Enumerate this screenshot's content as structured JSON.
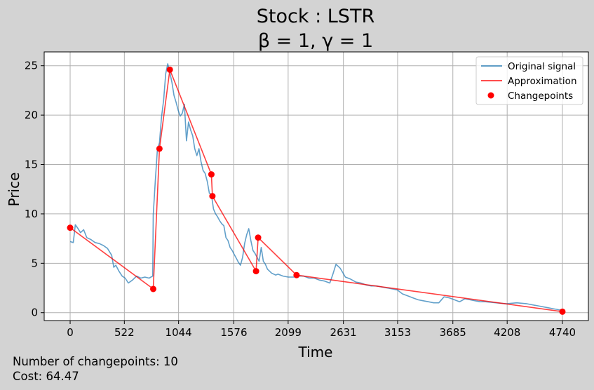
{
  "chart_data": {
    "type": "line",
    "title_line1": "Stock : LSTR",
    "title_line2": "β = 1, γ = 1",
    "xlabel": "Time",
    "ylabel": "Price",
    "xlim": [
      -250,
      4990
    ],
    "ylim": [
      -0.8,
      26.4
    ],
    "x_ticks": [
      0,
      522,
      1044,
      1576,
      2099,
      2631,
      3153,
      3685,
      4208,
      4740
    ],
    "y_ticks": [
      0,
      5,
      10,
      15,
      20,
      25
    ],
    "grid": true,
    "legend_position": "upper right",
    "legend": [
      "Original signal",
      "Approximation",
      "Changepoints"
    ],
    "colors": {
      "signal": "#1f77b4",
      "approximation": "#ff0000",
      "changepoints": "#ff0000"
    },
    "series": [
      {
        "name": "Original signal",
        "x": [
          0,
          30,
          50,
          70,
          100,
          130,
          160,
          200,
          240,
          280,
          320,
          360,
          400,
          420,
          440,
          470,
          500,
          530,
          560,
          600,
          640,
          680,
          720,
          760,
          795,
          800,
          820,
          840,
          860,
          880,
          900,
          920,
          940,
          960,
          980,
          1000,
          1020,
          1040,
          1060,
          1080,
          1100,
          1120,
          1140,
          1160,
          1180,
          1200,
          1220,
          1240,
          1260,
          1280,
          1300,
          1320,
          1340,
          1360,
          1380,
          1400,
          1420,
          1440,
          1460,
          1480,
          1500,
          1520,
          1540,
          1560,
          1580,
          1600,
          1620,
          1640,
          1660,
          1680,
          1700,
          1720,
          1740,
          1760,
          1780,
          1800,
          1820,
          1840,
          1860,
          1880,
          1900,
          1920,
          1940,
          1960,
          1980,
          2000,
          2050,
          2100,
          2150,
          2200,
          2250,
          2300,
          2350,
          2400,
          2450,
          2500,
          2530,
          2560,
          2600,
          2650,
          2700,
          2750,
          2800,
          2850,
          2900,
          2950,
          3000,
          3050,
          3100,
          3150,
          3200,
          3250,
          3300,
          3350,
          3400,
          3450,
          3500,
          3550,
          3600,
          3650,
          3700,
          3750,
          3800,
          3850,
          3900,
          3950,
          4000,
          4100,
          4200,
          4300,
          4400,
          4500,
          4600,
          4650,
          4700,
          4740
        ],
        "y": [
          7.2,
          7.1,
          8.9,
          8.6,
          8.1,
          8.4,
          7.6,
          7.4,
          7.1,
          7.0,
          6.8,
          6.5,
          5.8,
          4.6,
          4.8,
          4.2,
          3.7,
          3.5,
          3.0,
          3.3,
          3.7,
          3.5,
          3.6,
          3.5,
          3.7,
          9.9,
          13.4,
          16.5,
          17.2,
          19.8,
          21.5,
          24.2,
          25.2,
          24.3,
          23.3,
          22.0,
          21.3,
          20.5,
          19.9,
          20.2,
          21.1,
          17.4,
          19.3,
          18.5,
          17.9,
          16.6,
          15.9,
          16.6,
          15.3,
          14.4,
          14.1,
          13.3,
          12.1,
          12.0,
          10.5,
          10.0,
          9.7,
          9.3,
          9.0,
          8.8,
          7.6,
          7.3,
          6.6,
          6.3,
          5.9,
          5.5,
          5.1,
          4.8,
          5.6,
          7.0,
          7.9,
          8.5,
          7.3,
          6.3,
          6.0,
          5.6,
          5.2,
          6.6,
          5.2,
          4.9,
          4.4,
          4.2,
          4.0,
          3.9,
          3.8,
          3.9,
          3.7,
          3.6,
          3.6,
          3.7,
          3.7,
          3.5,
          3.5,
          3.3,
          3.2,
          3.0,
          3.9,
          4.9,
          4.5,
          3.6,
          3.4,
          3.1,
          3.0,
          2.8,
          2.7,
          2.7,
          2.6,
          2.5,
          2.4,
          2.3,
          1.9,
          1.7,
          1.5,
          1.3,
          1.2,
          1.1,
          1.0,
          1.0,
          1.6,
          1.5,
          1.3,
          1.1,
          1.4,
          1.3,
          1.2,
          1.1,
          1.1,
          1.0,
          0.9,
          1.0,
          0.9,
          0.7,
          0.5,
          0.4,
          0.3,
          0.2
        ]
      },
      {
        "name": "Approximation",
        "x": [
          0,
          800,
          860,
          960,
          1360,
          1370,
          1790,
          1810,
          2180,
          4740
        ],
        "y": [
          8.6,
          2.4,
          16.6,
          24.6,
          14.0,
          11.8,
          4.2,
          7.6,
          3.8,
          0.1
        ]
      },
      {
        "name": "Changepoints",
        "x": [
          0,
          800,
          860,
          960,
          1360,
          1370,
          1790,
          1810,
          2180,
          4740
        ],
        "y": [
          8.6,
          2.4,
          16.6,
          24.6,
          14.0,
          11.8,
          4.2,
          7.6,
          3.8,
          0.1
        ]
      }
    ]
  },
  "footer": {
    "changepoints_text": "Number of changepoints: 10",
    "cost_text": "Cost: 64.47"
  }
}
